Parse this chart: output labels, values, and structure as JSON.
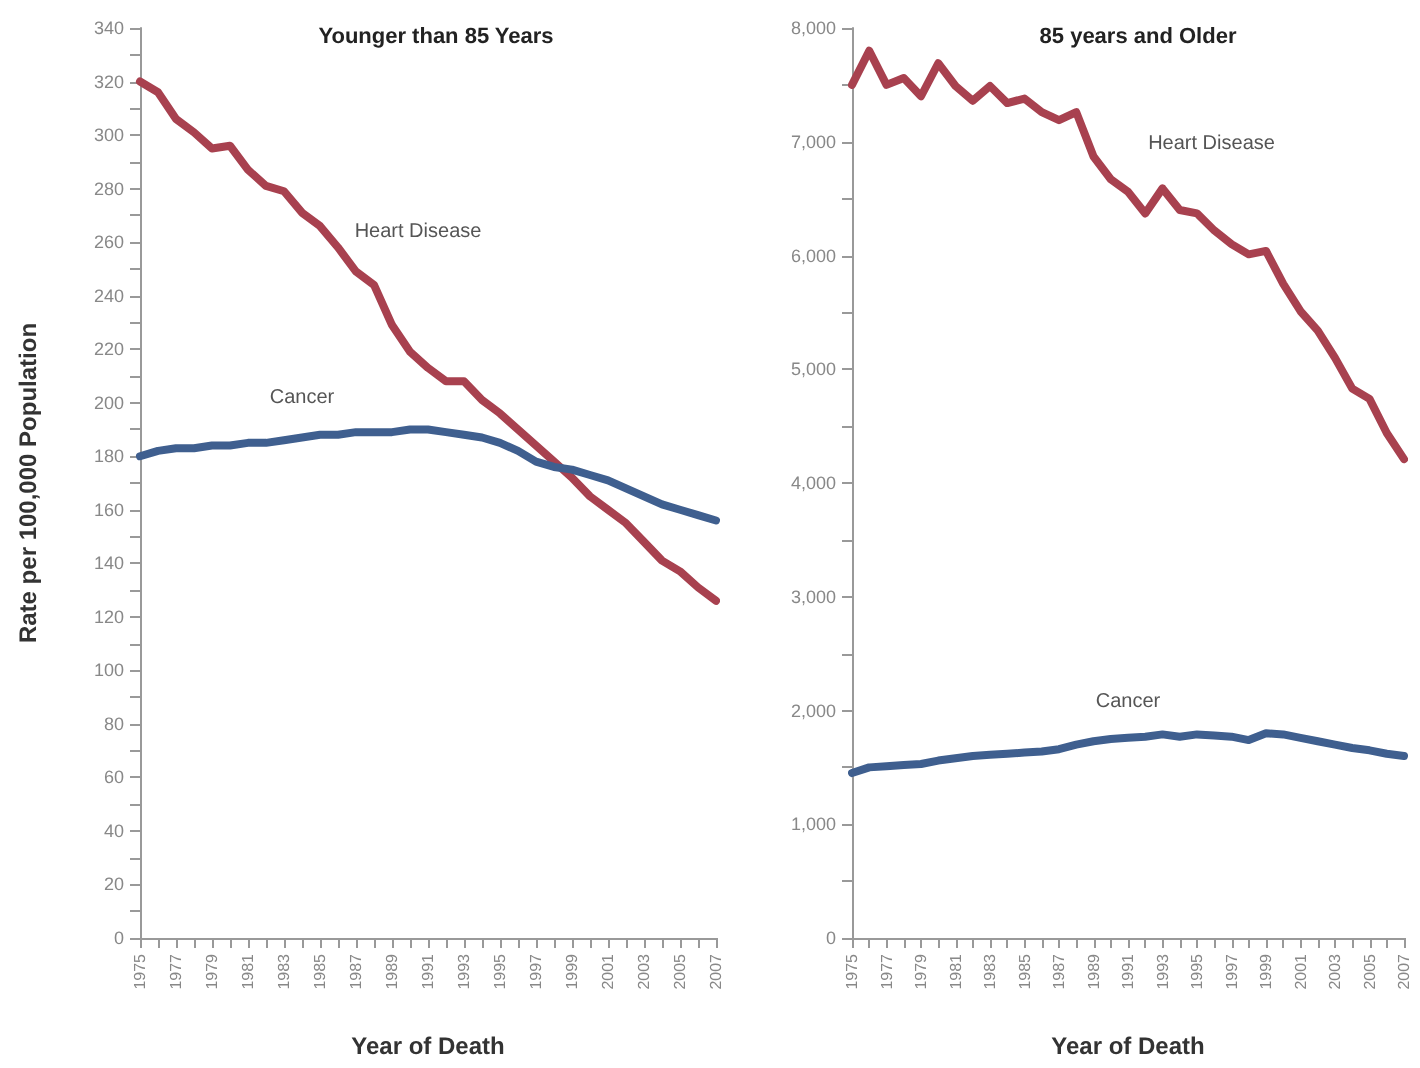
{
  "chart_data": [
    {
      "type": "line",
      "title": "Younger than 85 Years",
      "xlabel": "Year of Death",
      "ylabel": "Rate per 100,000 Population",
      "x": [
        1975,
        1976,
        1977,
        1978,
        1979,
        1980,
        1981,
        1982,
        1983,
        1984,
        1985,
        1986,
        1987,
        1988,
        1989,
        1990,
        1991,
        1992,
        1993,
        1994,
        1995,
        1996,
        1997,
        1998,
        1999,
        2000,
        2001,
        2002,
        2003,
        2004,
        2005,
        2006,
        2007
      ],
      "series": [
        {
          "name": "Heart Disease",
          "color": "#a8414f",
          "values": [
            320,
            316,
            306,
            301,
            295,
            296,
            287,
            281,
            279,
            271,
            266,
            258,
            249,
            244,
            229,
            219,
            213,
            208,
            208,
            201,
            196,
            190,
            184,
            178,
            172,
            165,
            160,
            155,
            148,
            141,
            137,
            131,
            126
          ]
        },
        {
          "name": "Cancer",
          "color": "#3f5f8f",
          "values": [
            180,
            182,
            183,
            183,
            184,
            184,
            185,
            185,
            186,
            187,
            188,
            188,
            189,
            189,
            189,
            190,
            190,
            189,
            188,
            187,
            185,
            182,
            178,
            176,
            175,
            173,
            171,
            168,
            165,
            162,
            160,
            158,
            156
          ]
        }
      ],
      "xlim": [
        1975,
        2007
      ],
      "xticks": [
        1975,
        {
          "value": 1976,
          "label": null
        },
        1977,
        {
          "value": 1978,
          "label": null
        },
        1979,
        {
          "value": 1980,
          "label": null
        },
        1981,
        {
          "value": 1982,
          "label": null
        },
        1983,
        {
          "value": 1984,
          "label": null
        },
        1985,
        {
          "value": 1986,
          "label": null
        },
        1987,
        {
          "value": 1988,
          "label": null
        },
        1989,
        {
          "value": 1990,
          "label": null
        },
        1991,
        {
          "value": 1992,
          "label": null
        },
        1993,
        {
          "value": 1994,
          "label": null
        },
        1995,
        {
          "value": 1996,
          "label": null
        },
        1997,
        {
          "value": 1998,
          "label": null
        },
        1999,
        {
          "value": 2000,
          "label": null
        },
        2001,
        {
          "value": 2002,
          "label": null
        },
        2003,
        {
          "value": 2004,
          "label": null
        },
        2005,
        {
          "value": 2006,
          "label": null
        },
        2007
      ],
      "ylim": [
        0,
        340
      ],
      "yticks": [
        0,
        {
          "value": 10,
          "label": null
        },
        20,
        {
          "value": 30,
          "label": null
        },
        40,
        {
          "value": 50,
          "label": null
        },
        60,
        {
          "value": 70,
          "label": null
        },
        80,
        {
          "value": 90,
          "label": null
        },
        100,
        {
          "value": 110,
          "label": null
        },
        120,
        {
          "value": 130,
          "label": null
        },
        140,
        {
          "value": 150,
          "label": null
        },
        160,
        {
          "value": 170,
          "label": null
        },
        180,
        {
          "value": 190,
          "label": null
        },
        200,
        {
          "value": 210,
          "label": null
        },
        220,
        {
          "value": 230,
          "label": null
        },
        240,
        {
          "value": 250,
          "label": null
        },
        260,
        {
          "value": 270,
          "label": null
        },
        280,
        {
          "value": 290,
          "label": null
        },
        300,
        {
          "value": 310,
          "label": null
        },
        320,
        {
          "value": 330,
          "label": null
        },
        340
      ],
      "grid": false,
      "legend": false,
      "marker": "none",
      "line_style": "solid"
    },
    {
      "type": "line",
      "title": "85 years and Older",
      "xlabel": "Year of Death",
      "x": [
        1975,
        1976,
        1977,
        1978,
        1979,
        1980,
        1981,
        1982,
        1983,
        1984,
        1985,
        1986,
        1987,
        1988,
        1989,
        1990,
        1991,
        1992,
        1993,
        1994,
        1995,
        1996,
        1997,
        1998,
        1999,
        2000,
        2001,
        2002,
        2003,
        2004,
        2005,
        2006,
        2007
      ],
      "series": [
        {
          "name": "Heart Disease",
          "color": "#a8414f",
          "values": [
            7500,
            7800,
            7500,
            7560,
            7400,
            7690,
            7490,
            7360,
            7490,
            7340,
            7380,
            7260,
            7190,
            7260,
            6870,
            6670,
            6560,
            6370,
            6590,
            6400,
            6370,
            6220,
            6100,
            6010,
            6040,
            5750,
            5510,
            5340,
            5100,
            4830,
            4740,
            4440,
            4210
          ]
        },
        {
          "name": "Cancer",
          "color": "#3f5f8f",
          "values": [
            1450,
            1500,
            1510,
            1520,
            1530,
            1560,
            1580,
            1600,
            1610,
            1620,
            1630,
            1640,
            1660,
            1700,
            1730,
            1750,
            1760,
            1770,
            1790,
            1770,
            1790,
            1780,
            1770,
            1740,
            1800,
            1790,
            1760,
            1730,
            1700,
            1670,
            1650,
            1620,
            1600
          ]
        }
      ],
      "xlim": [
        1975,
        2007
      ],
      "xticks": [
        1975,
        {
          "value": 1976,
          "label": null
        },
        1977,
        {
          "value": 1978,
          "label": null
        },
        1979,
        {
          "value": 1980,
          "label": null
        },
        1981,
        {
          "value": 1982,
          "label": null
        },
        1983,
        {
          "value": 1984,
          "label": null
        },
        1985,
        {
          "value": 1986,
          "label": null
        },
        1987,
        {
          "value": 1988,
          "label": null
        },
        1989,
        {
          "value": 1990,
          "label": null
        },
        1991,
        {
          "value": 1992,
          "label": null
        },
        1993,
        {
          "value": 1994,
          "label": null
        },
        1995,
        {
          "value": 1996,
          "label": null
        },
        1997,
        {
          "value": 1998,
          "label": null
        },
        1999,
        {
          "value": 2000,
          "label": null
        },
        2001,
        {
          "value": 2002,
          "label": null
        },
        2003,
        {
          "value": 2004,
          "label": null
        },
        2005,
        {
          "value": 2006,
          "label": null
        },
        2007
      ],
      "ylim": [
        0,
        8000
      ],
      "yticks": [
        0,
        {
          "value": 500,
          "label": null
        },
        {
          "value": 1000,
          "label": "1,000"
        },
        {
          "value": 1500,
          "label": null
        },
        {
          "value": 2000,
          "label": "2,000"
        },
        {
          "value": 2500,
          "label": null
        },
        {
          "value": 3000,
          "label": "3,000"
        },
        {
          "value": 3500,
          "label": null
        },
        {
          "value": 4000,
          "label": "4,000"
        },
        {
          "value": 4500,
          "label": null
        },
        {
          "value": 5000,
          "label": "5,000"
        },
        {
          "value": 5500,
          "label": null
        },
        {
          "value": 6000,
          "label": "6,000"
        },
        {
          "value": 6500,
          "label": null
        },
        {
          "value": 7000,
          "label": "7,000"
        },
        {
          "value": 7500,
          "label": null
        },
        {
          "value": 8000,
          "label": "8,000"
        }
      ],
      "grid": false,
      "legend": false,
      "marker": "none",
      "line_style": "solid"
    }
  ]
}
